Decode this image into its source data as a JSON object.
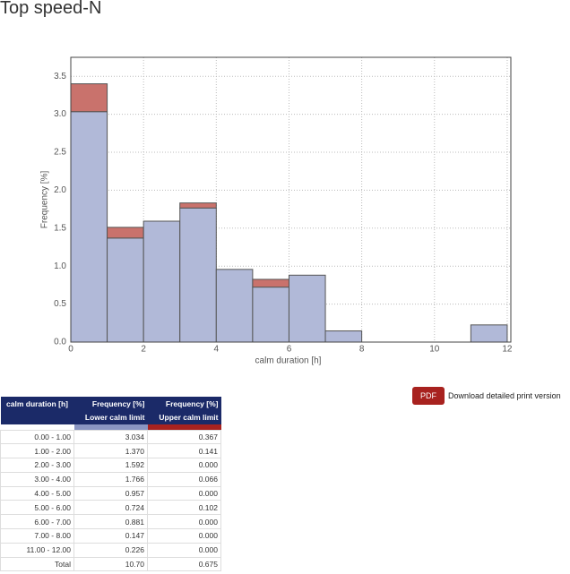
{
  "title": "Top speed-N",
  "chart_data": {
    "type": "histogram",
    "xlabel": "calm duration [h]",
    "ylabel": "Frequency [%]",
    "bins": [
      0,
      1,
      2,
      3,
      4,
      5,
      6,
      7,
      8,
      11,
      12
    ],
    "series": [
      {
        "color": "#b1b9d8",
        "values": [
          3.034,
          1.37,
          1.592,
          1.766,
          0.957,
          0.724,
          0.881,
          0.147,
          0,
          0.226
        ]
      },
      {
        "color": "#c9726c",
        "values": [
          0.367,
          0.141,
          0.0,
          0.066,
          0.0,
          0.102,
          0.0,
          0.0,
          0,
          0.0
        ]
      }
    ],
    "xlim": [
      0,
      12.1
    ],
    "ylim": [
      0,
      3.75
    ],
    "xticks": [
      0,
      2,
      4,
      6,
      8,
      10,
      12
    ],
    "yticks": [
      {
        "value": 0,
        "label": "0.0"
      },
      0.5,
      {
        "value": 1,
        "label": "1.0"
      },
      1.5,
      {
        "value": 2,
        "label": "2.0"
      },
      2.5,
      {
        "value": 3,
        "label": "3.0"
      },
      3.5
    ],
    "grid": true
  },
  "pdf_button": {
    "label": "PDF",
    "text": "Download detailed print version"
  },
  "table": {
    "columns": [
      {
        "title": "calm duration [h]"
      },
      {
        "title": "Frequency [%]",
        "subtitle": "Lower calm limit",
        "color": "#8a95c2"
      },
      {
        "title": "Frequency [%]",
        "subtitle": "Upper calm limit",
        "color": "#a8221f"
      }
    ],
    "rows": [
      [
        "0.00 - 1.00",
        "3.034",
        "0.367"
      ],
      [
        "1.00 - 2.00",
        "1.370",
        "0.141"
      ],
      [
        "2.00 - 3.00",
        "1.592",
        "0.000"
      ],
      [
        "3.00 - 4.00",
        "1.766",
        "0.066"
      ],
      [
        "4.00 - 5.00",
        "0.957",
        "0.000"
      ],
      [
        "5.00 - 6.00",
        "0.724",
        "0.102"
      ],
      [
        "6.00 - 7.00",
        "0.881",
        "0.000"
      ],
      [
        "7.00 - 8.00",
        "0.147",
        "0.000"
      ],
      [
        "11.00 - 12.00",
        "0.226",
        "0.000"
      ],
      [
        "Total",
        "10.70",
        "0.675"
      ]
    ]
  }
}
